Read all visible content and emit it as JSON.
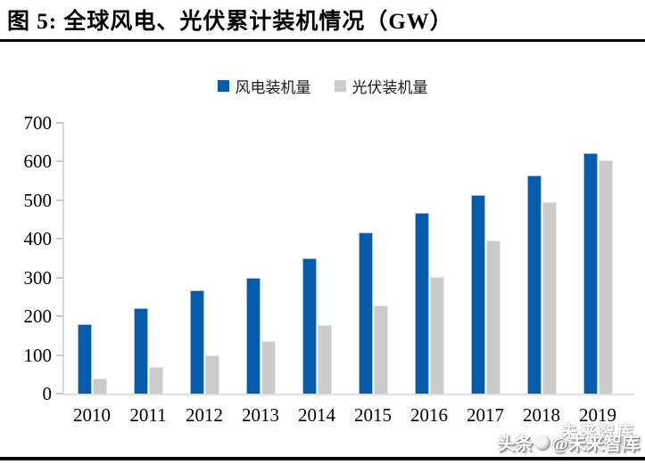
{
  "figure": {
    "title": "图 5: 全球风电、光伏累计装机情况（GW）"
  },
  "watermark": {
    "prefix": "头条",
    "suffix": "@未来智库",
    "ghost": "未来智库",
    "logo_icon": "circle-logo-icon"
  },
  "chart_data": {
    "type": "bar",
    "title": "全球风电、光伏累计装机情况（GW）",
    "xlabel": "",
    "ylabel": "",
    "categories": [
      "2010",
      "2011",
      "2012",
      "2013",
      "2014",
      "2015",
      "2016",
      "2017",
      "2018",
      "2019"
    ],
    "series": [
      {
        "key": "wind",
        "name": "风电装机量",
        "color": "#075BAB",
        "values": [
          180,
          220,
          267,
          300,
          350,
          416,
          467,
          514,
          564,
          622
        ]
      },
      {
        "key": "pv",
        "name": "光伏装机量",
        "color": "#CBCBCB",
        "values": [
          40,
          70,
          100,
          137,
          177,
          227,
          302,
          397,
          495,
          603
        ]
      }
    ],
    "ylim": [
      0,
      700
    ],
    "yticks": [
      0,
      100,
      200,
      300,
      400,
      500,
      600,
      700
    ],
    "grid": false,
    "legend_position": "top",
    "axis_color": "#D9D9D9"
  }
}
